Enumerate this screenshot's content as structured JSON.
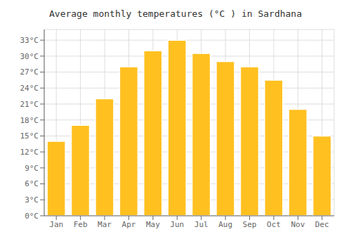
{
  "chart_data": {
    "type": "bar",
    "title": "Average monthly temperatures (°C ) in Sardhana",
    "categories": [
      "Jan",
      "Feb",
      "Mar",
      "Apr",
      "May",
      "Jun",
      "Jul",
      "Aug",
      "Sep",
      "Oct",
      "Nov",
      "Dec"
    ],
    "values": [
      14,
      17,
      22,
      28,
      31,
      33,
      30.5,
      29,
      28,
      25.5,
      20,
      15
    ],
    "color": "#FFC020",
    "ylim": [
      0,
      35
    ],
    "yticks": [
      {
        "value": 0,
        "label": "0°C"
      },
      {
        "value": 3,
        "label": "3°C"
      },
      {
        "value": 6,
        "label": "6°C"
      },
      {
        "value": 9,
        "label": "9°C"
      },
      {
        "value": 12,
        "label": "12°C"
      },
      {
        "value": 15,
        "label": "15°C"
      },
      {
        "value": 18,
        "label": "18°C"
      },
      {
        "value": 21,
        "label": "21°C"
      },
      {
        "value": 24,
        "label": "24°C"
      },
      {
        "value": 27,
        "label": "27°C"
      },
      {
        "value": 30,
        "label": "30°C"
      },
      {
        "value": 33,
        "label": "33°C"
      }
    ],
    "grid": true
  }
}
